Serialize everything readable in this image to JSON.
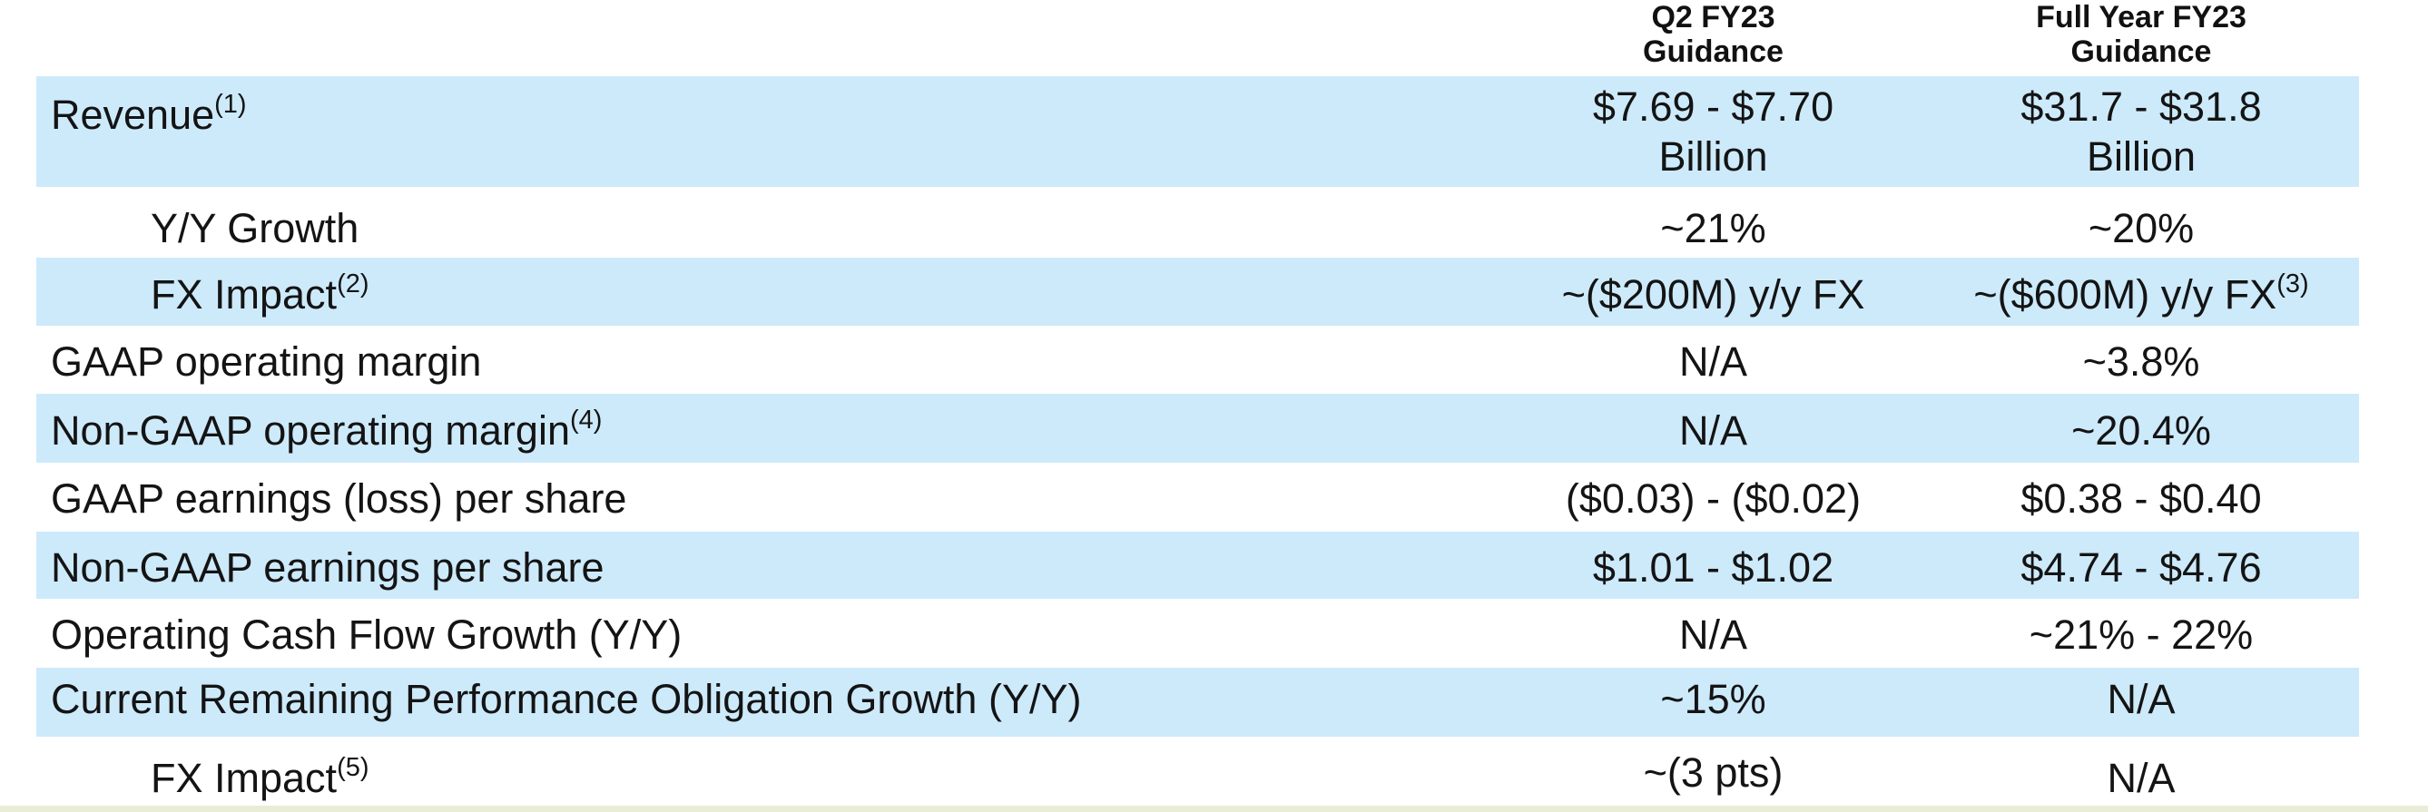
{
  "header": {
    "q2_line1": "Q2 FY23",
    "q2_line2": "Guidance",
    "fy_line1": "Full Year FY23",
    "fy_line2": "Guidance"
  },
  "rows": [
    {
      "label": "Revenue",
      "label_sup": "(1)",
      "q2_line1": "$7.69 - $7.70",
      "q2_line2": "Billion",
      "fy_line1": "$31.7 - $31.8",
      "fy_line2": "Billion"
    },
    {
      "label": "Y/Y Growth",
      "q2": "~21%",
      "fy": "~20%"
    },
    {
      "label": "FX Impact",
      "label_sup": "(2)",
      "q2": "~($200M) y/y FX",
      "fy": "~($600M) y/y FX",
      "fy_sup": "(3)"
    },
    {
      "label": "GAAP operating margin",
      "q2": "N/A",
      "fy": "~3.8%"
    },
    {
      "label": "Non-GAAP operating margin",
      "label_sup": "(4)",
      "q2": "N/A",
      "fy": "~20.4%"
    },
    {
      "label": "GAAP earnings (loss) per share",
      "q2": "($0.03) - ($0.02)",
      "fy": "$0.38 - $0.40"
    },
    {
      "label": "Non-GAAP earnings per share",
      "q2": "$1.01 - $1.02",
      "fy": "$4.74 - $4.76"
    },
    {
      "label": "Operating Cash Flow Growth (Y/Y)",
      "q2": "N/A",
      "fy": "~21% - 22%"
    },
    {
      "label": "Current Remaining Performance Obligation Growth (Y/Y)",
      "q2": "~15%",
      "fy": "N/A"
    },
    {
      "label": "FX Impact",
      "label_sup": "(5)",
      "q2": "~(3 pts)",
      "fy": "N/A"
    }
  ],
  "colors": {
    "row_shade": "#cdeafb",
    "text": "#141414",
    "rule": "#111111"
  }
}
